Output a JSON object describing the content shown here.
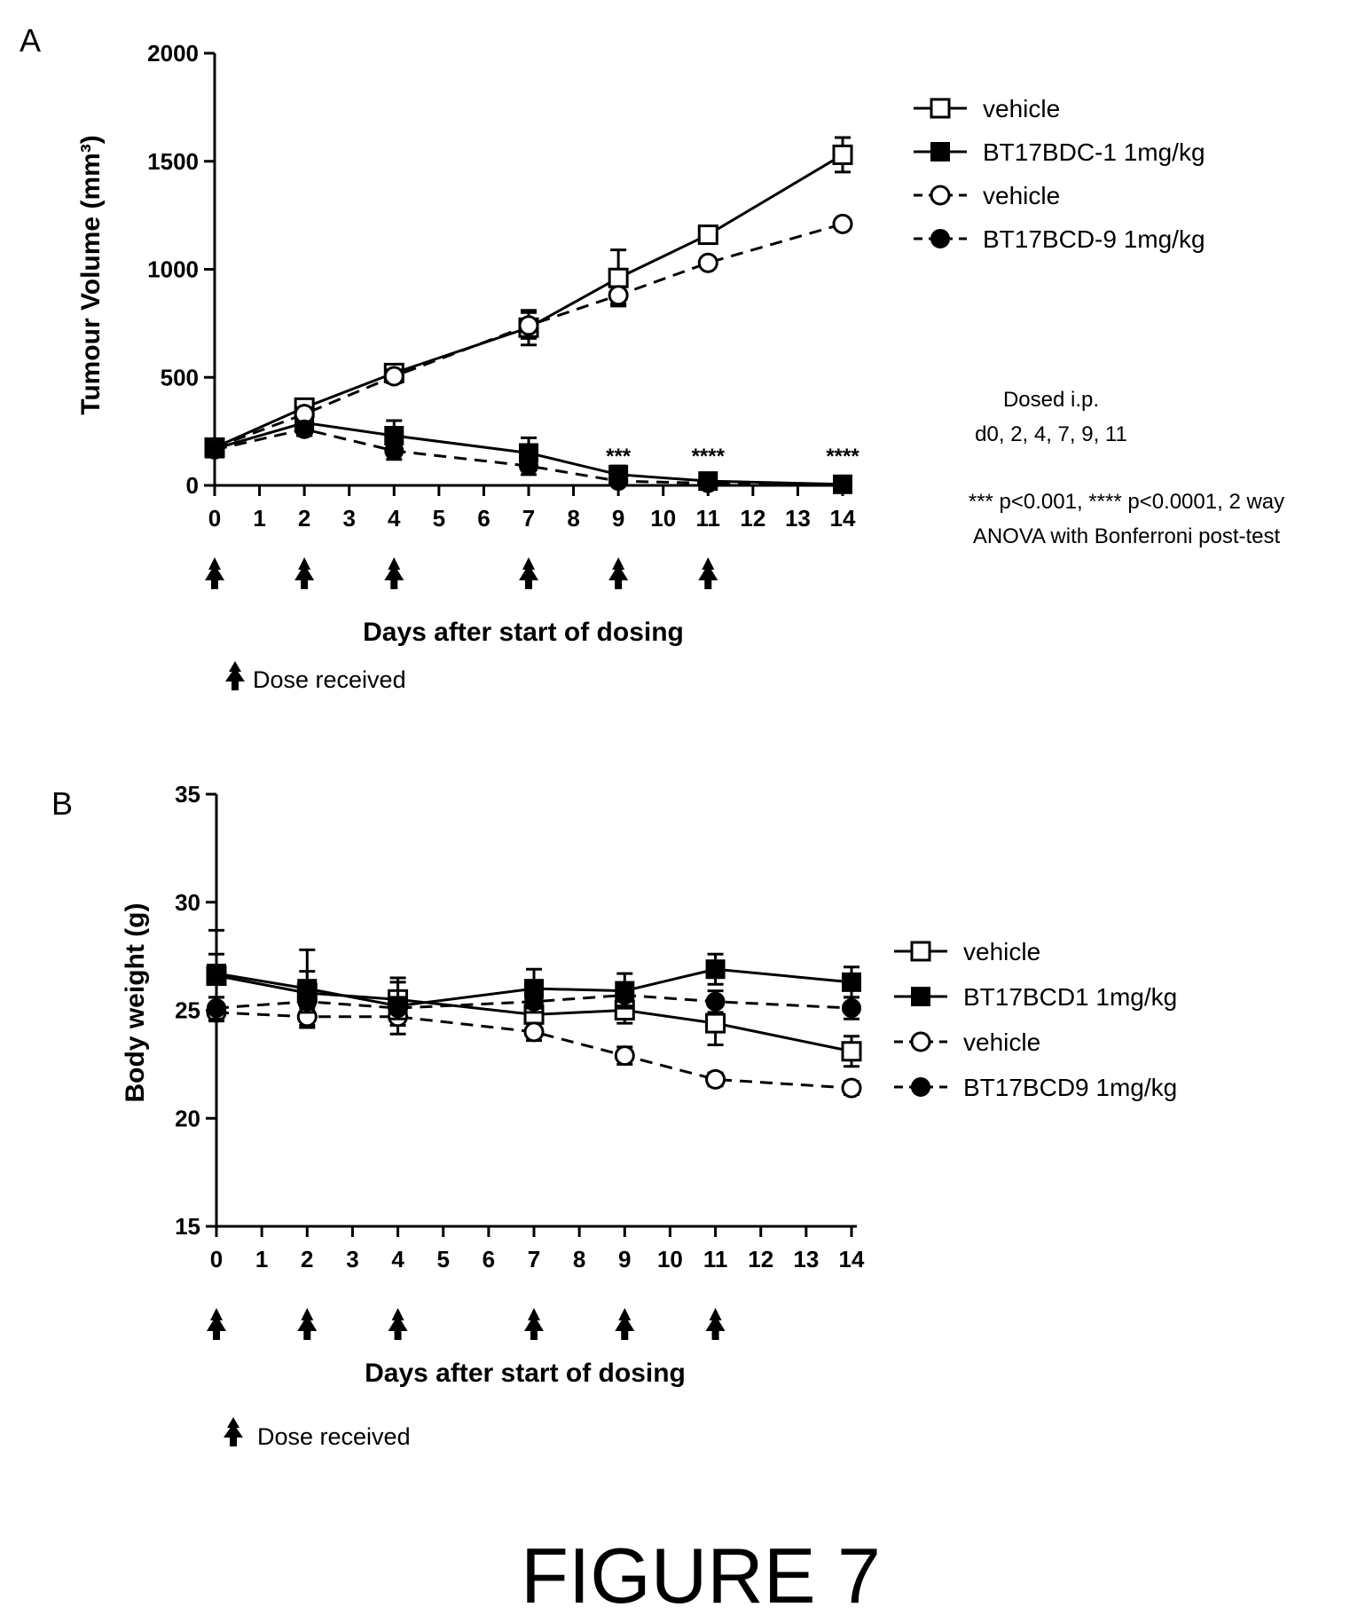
{
  "figure_title": "FIGURE 7",
  "dose_legend_text": "Dose received",
  "panels": {
    "A": {
      "letter": "A",
      "notes": [
        "Dosed i.p.",
        "d0, 2, 4, 7, 9, 11",
        "*** p<0.001, **** p<0.0001, 2 way",
        "ANOVA with Bonferroni post-test"
      ]
    },
    "B": {
      "letter": "B"
    }
  },
  "chart_data": [
    {
      "type": "line",
      "panel": "A",
      "xlabel": "Days after start of dosing",
      "ylabel": "Tumour Volume (mm³)",
      "ylim": [
        0,
        2000
      ],
      "yticks": [
        0,
        500,
        1000,
        1500,
        2000
      ],
      "xlim": [
        0,
        14
      ],
      "xticks": [
        0,
        1,
        2,
        3,
        4,
        5,
        6,
        7,
        8,
        9,
        10,
        11,
        12,
        13,
        14
      ],
      "dose_days": [
        0,
        2,
        4,
        7,
        9,
        11
      ],
      "series": [
        {
          "name": "vehicle",
          "marker": "open-square",
          "line": "solid",
          "x": [
            0,
            2,
            4,
            7,
            9,
            11,
            14
          ],
          "y": [
            175,
            360,
            520,
            730,
            960,
            1160,
            1530
          ],
          "err": [
            20,
            30,
            30,
            80,
            130,
            20,
            80
          ]
        },
        {
          "name": "BT17BDC-1 1mg/kg",
          "marker": "filled-square",
          "line": "solid",
          "x": [
            0,
            2,
            4,
            7,
            9,
            11,
            14
          ],
          "y": [
            170,
            290,
            230,
            150,
            50,
            20,
            5
          ],
          "err": [
            20,
            60,
            70,
            70,
            40,
            10,
            5
          ]
        },
        {
          "name": "vehicle",
          "marker": "open-circle",
          "line": "dashed",
          "x": [
            0,
            2,
            4,
            7,
            9,
            11,
            14
          ],
          "y": [
            175,
            330,
            505,
            740,
            880,
            1030,
            1210
          ],
          "err": [
            20,
            30,
            30,
            60,
            40,
            20,
            20
          ]
        },
        {
          "name": "BT17BCD-9 1mg/kg",
          "marker": "filled-circle",
          "line": "dashed",
          "x": [
            0,
            2,
            4,
            7,
            9,
            11,
            14
          ],
          "y": [
            165,
            260,
            160,
            90,
            20,
            10,
            5
          ],
          "err": [
            20,
            30,
            40,
            40,
            20,
            10,
            5
          ]
        }
      ],
      "annotations": [
        {
          "x": 9,
          "text": "***"
        },
        {
          "x": 11,
          "text": "****"
        },
        {
          "x": 14,
          "text": "****"
        }
      ]
    },
    {
      "type": "line",
      "panel": "B",
      "xlabel": "Days after start of dosing",
      "ylabel": "Body weight (g)",
      "ylim": [
        15,
        35
      ],
      "yticks": [
        15,
        20,
        25,
        30,
        35
      ],
      "xlim": [
        0,
        14
      ],
      "xticks": [
        0,
        1,
        2,
        3,
        4,
        5,
        6,
        7,
        8,
        9,
        10,
        11,
        12,
        13,
        14
      ],
      "dose_days": [
        0,
        2,
        4,
        7,
        9,
        11
      ],
      "series": [
        {
          "name": "vehicle",
          "marker": "open-square",
          "line": "solid",
          "x": [
            0,
            2,
            4,
            7,
            9,
            11,
            14
          ],
          "y": [
            26.6,
            25.8,
            25.5,
            24.8,
            25.0,
            24.4,
            23.1
          ],
          "err": [
            1.0,
            1.0,
            0.8,
            0.6,
            0.6,
            1.0,
            0.7
          ]
        },
        {
          "name": "BT17BCD1 1mg/kg",
          "marker": "filled-square",
          "line": "solid",
          "x": [
            0,
            2,
            4,
            7,
            9,
            11,
            14
          ],
          "y": [
            26.7,
            26.0,
            25.2,
            26.0,
            25.9,
            26.9,
            26.3
          ],
          "err": [
            2.0,
            1.8,
            1.3,
            0.9,
            0.8,
            0.7,
            0.7
          ]
        },
        {
          "name": "vehicle",
          "marker": "open-circle",
          "line": "dashed",
          "x": [
            0,
            2,
            4,
            7,
            9,
            11,
            14
          ],
          "y": [
            24.9,
            24.7,
            24.7,
            24.0,
            22.9,
            21.8,
            21.4
          ],
          "err": [
            0.4,
            0.4,
            0.4,
            0.4,
            0.4,
            0.3,
            0.3
          ]
        },
        {
          "name": "BT17BCD9 1mg/kg",
          "marker": "filled-circle",
          "line": "dashed",
          "x": [
            0,
            2,
            4,
            7,
            9,
            11,
            14
          ],
          "y": [
            25.1,
            25.4,
            25.1,
            25.4,
            25.7,
            25.4,
            25.1
          ],
          "err": [
            0.5,
            0.5,
            0.5,
            0.5,
            0.5,
            0.5,
            0.5
          ]
        }
      ]
    }
  ]
}
